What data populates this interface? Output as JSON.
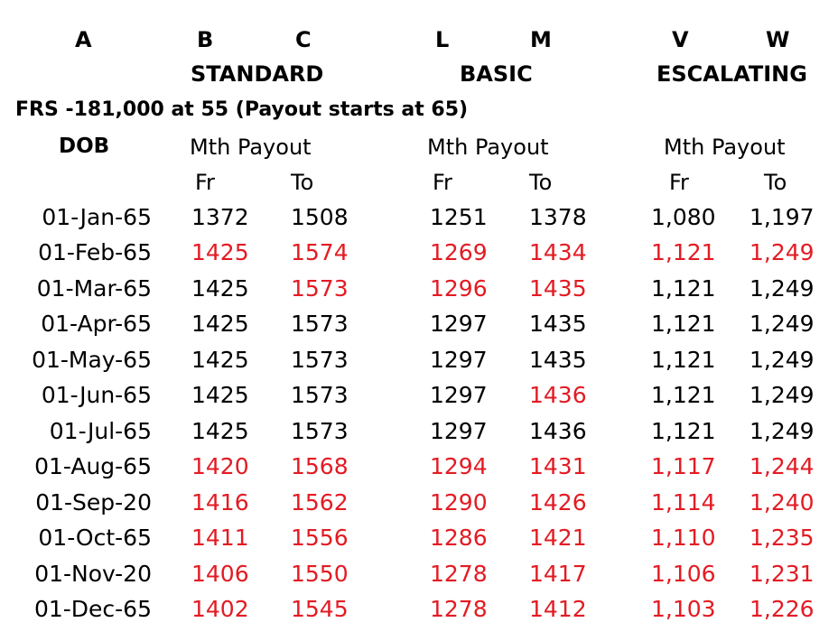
{
  "column_letters": [
    "A",
    "B",
    "C",
    "L",
    "M",
    "V",
    "W"
  ],
  "groups": [
    "STANDARD",
    "BASIC",
    "ESCALATING"
  ],
  "note": "FRS -181,000 at 55 (Payout starts at 65)",
  "dob_header": "DOB",
  "payout_headers": [
    "Mth Payout",
    "Mth Payout",
    "Mth Payout"
  ],
  "sub_headers": [
    "Fr",
    "To",
    "Fr",
    "To",
    "Fr",
    "To"
  ],
  "colors": {
    "highlight": "#e31b23",
    "normal": "#000000"
  },
  "rows": [
    {
      "dob": "01-Jan-65",
      "values": [
        "1372",
        "1508",
        "1251",
        "1378",
        "1,080",
        "1,197"
      ],
      "red": [
        false,
        false,
        false,
        false,
        false,
        false
      ]
    },
    {
      "dob": "01-Feb-65",
      "values": [
        "1425",
        "1574",
        "1269",
        "1434",
        "1,121",
        "1,249"
      ],
      "red": [
        true,
        true,
        true,
        true,
        true,
        true
      ]
    },
    {
      "dob": "01-Mar-65",
      "values": [
        "1425",
        "1573",
        "1296",
        "1435",
        "1,121",
        "1,249"
      ],
      "red": [
        false,
        true,
        true,
        true,
        false,
        false
      ]
    },
    {
      "dob": "01-Apr-65",
      "values": [
        "1425",
        "1573",
        "1297",
        "1435",
        "1,121",
        "1,249"
      ],
      "red": [
        false,
        false,
        false,
        false,
        false,
        false
      ]
    },
    {
      "dob": "01-May-65",
      "values": [
        "1425",
        "1573",
        "1297",
        "1435",
        "1,121",
        "1,249"
      ],
      "red": [
        false,
        false,
        false,
        false,
        false,
        false
      ]
    },
    {
      "dob": "01-Jun-65",
      "values": [
        "1425",
        "1573",
        "1297",
        "1436",
        "1,121",
        "1,249"
      ],
      "red": [
        false,
        false,
        false,
        true,
        false,
        false
      ]
    },
    {
      "dob": "01-Jul-65",
      "values": [
        "1425",
        "1573",
        "1297",
        "1436",
        "1,121",
        "1,249"
      ],
      "red": [
        false,
        false,
        false,
        false,
        false,
        false
      ]
    },
    {
      "dob": "01-Aug-65",
      "values": [
        "1420",
        "1568",
        "1294",
        "1431",
        "1,117",
        "1,244"
      ],
      "red": [
        true,
        true,
        true,
        true,
        true,
        true
      ]
    },
    {
      "dob": "01-Sep-20",
      "values": [
        "1416",
        "1562",
        "1290",
        "1426",
        "1,114",
        "1,240"
      ],
      "red": [
        true,
        true,
        true,
        true,
        true,
        true
      ]
    },
    {
      "dob": "01-Oct-65",
      "values": [
        "1411",
        "1556",
        "1286",
        "1421",
        "1,110",
        "1,235"
      ],
      "red": [
        true,
        true,
        true,
        true,
        true,
        true
      ]
    },
    {
      "dob": "01-Nov-20",
      "values": [
        "1406",
        "1550",
        "1278",
        "1417",
        "1,106",
        "1,231"
      ],
      "red": [
        true,
        true,
        true,
        true,
        true,
        true
      ]
    },
    {
      "dob": "01-Dec-65",
      "values": [
        "1402",
        "1545",
        "1278",
        "1412",
        "1,103",
        "1,226"
      ],
      "red": [
        true,
        true,
        true,
        true,
        true,
        true
      ]
    }
  ]
}
